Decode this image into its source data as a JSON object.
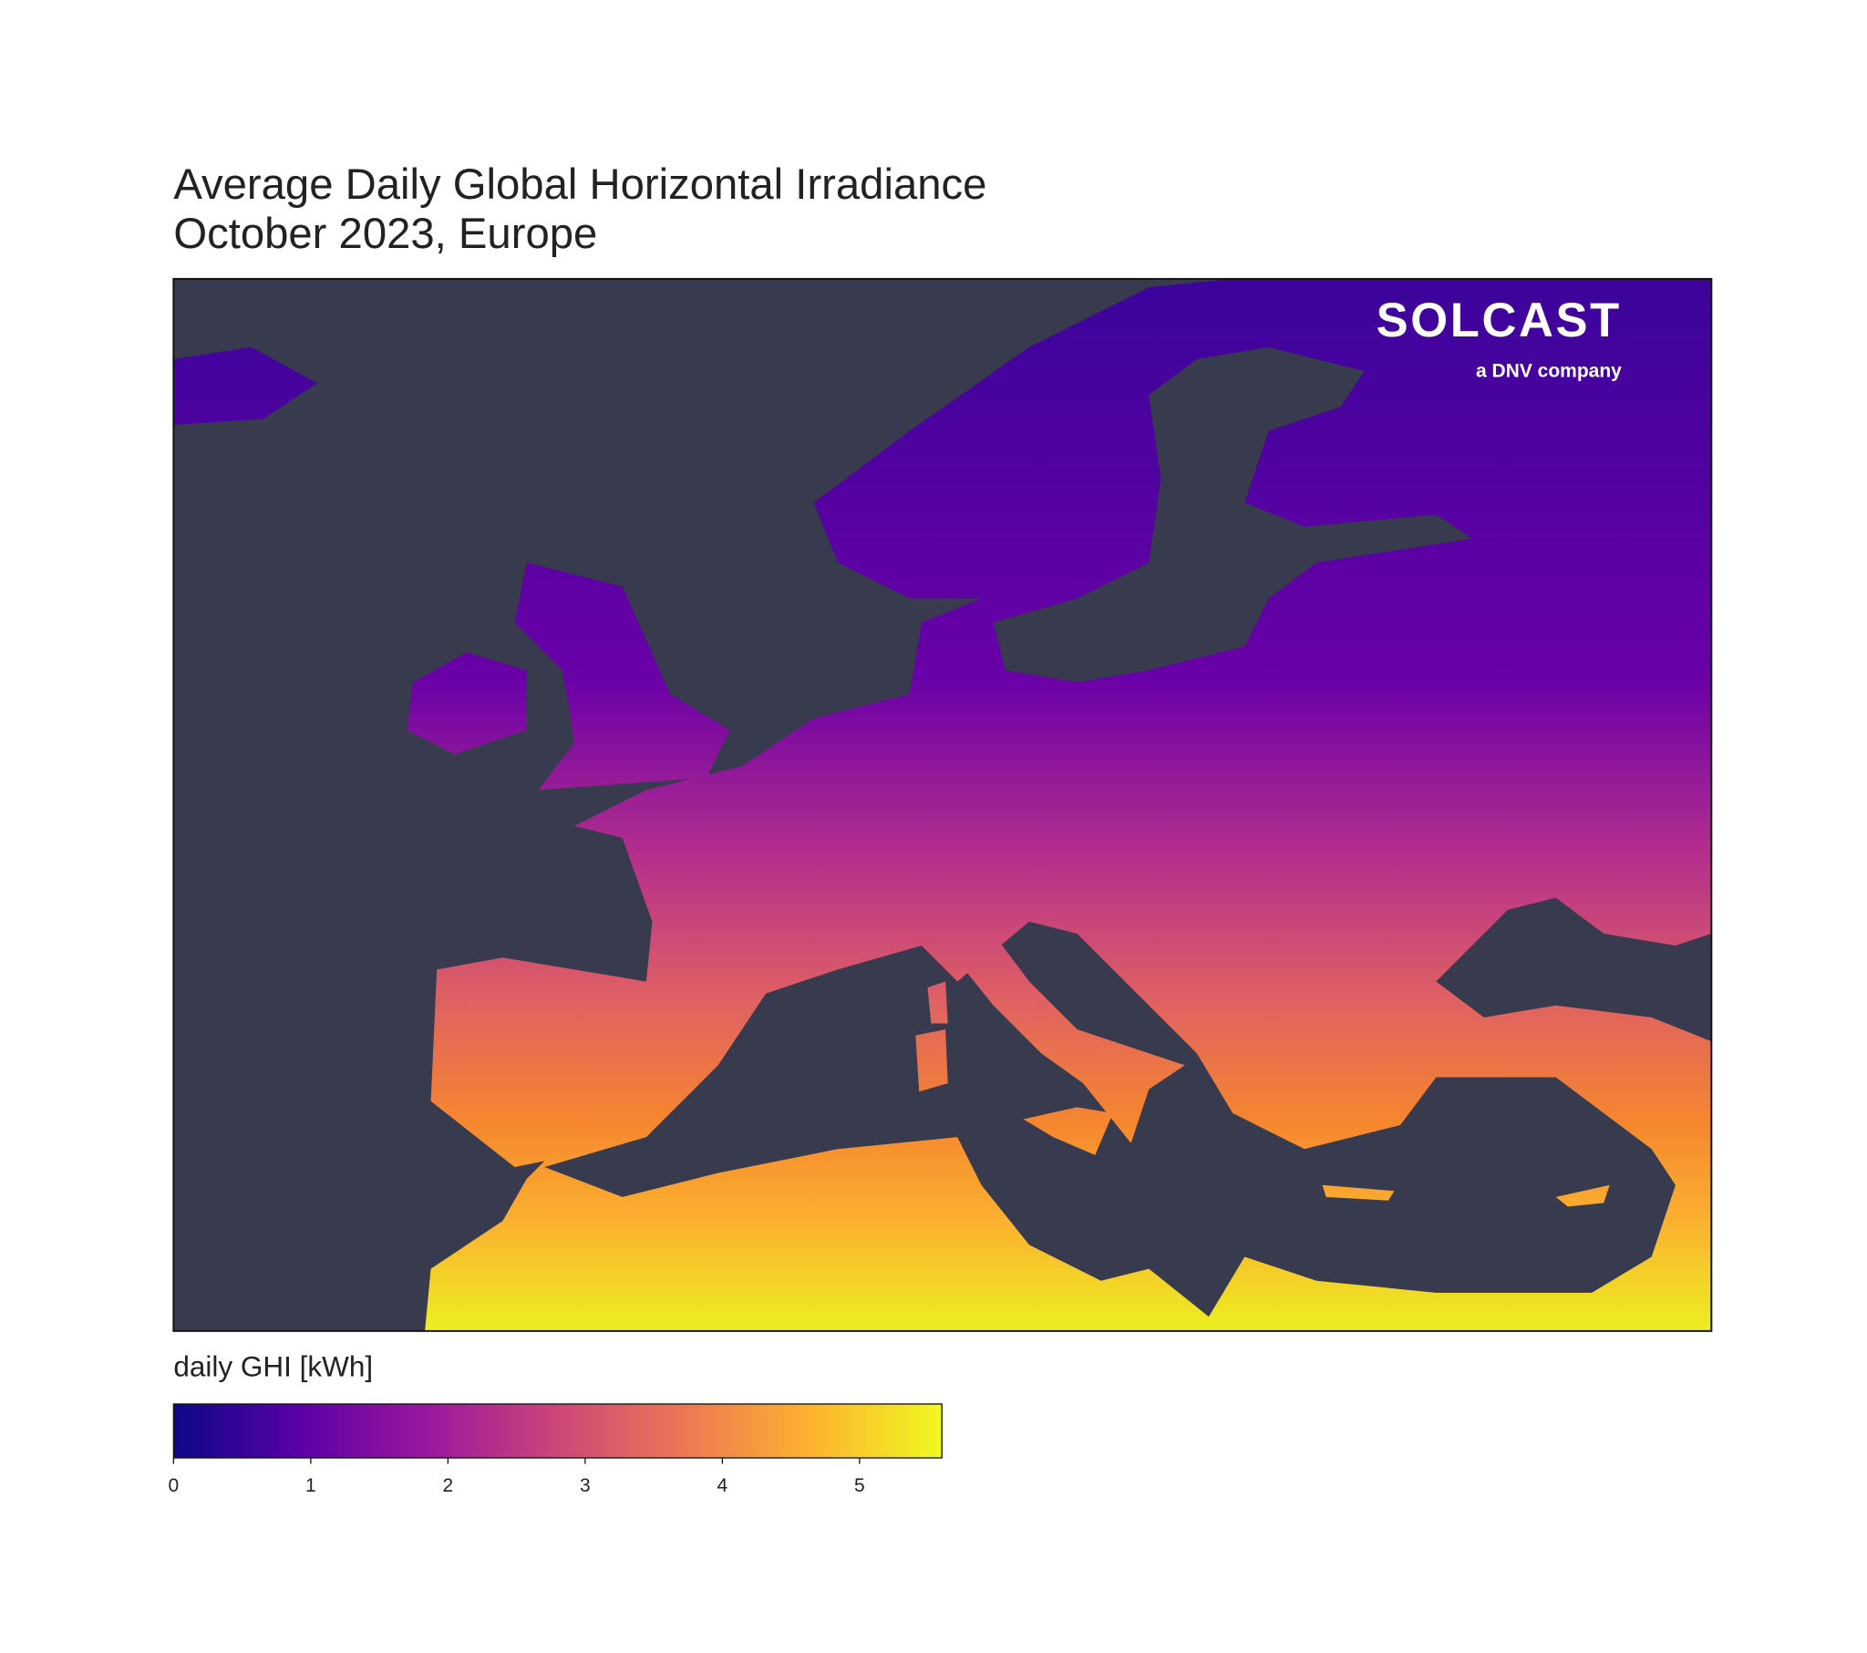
{
  "title": [
    "Average Daily Global Horizontal Irradiance",
    "October 2023, Europe"
  ],
  "logo": {
    "name": "SOLCAST",
    "tagline": "a DNV company"
  },
  "colorbar": {
    "label": "daily GHI [kWh]",
    "lim": [
      0,
      5.6
    ],
    "ticks": [
      0,
      1,
      2,
      3,
      4,
      5
    ],
    "colors": [
      "#0d0887",
      "#5c01a6",
      "#9c179e",
      "#cc4778",
      "#ed7953",
      "#fdb42f",
      "#f0f921"
    ]
  }
}
